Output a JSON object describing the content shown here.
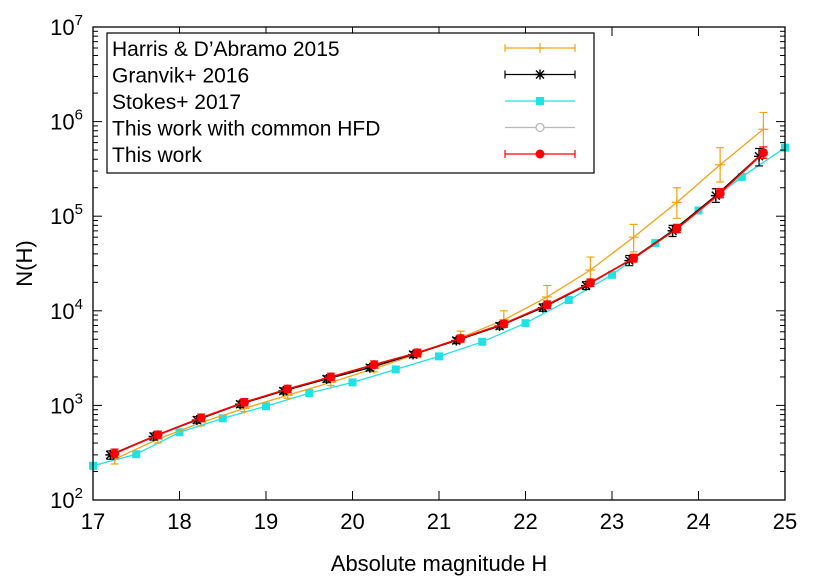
{
  "chart_data": {
    "type": "line",
    "xlabel": "Absolute magnitude H",
    "ylabel": "N(H)",
    "xlim": [
      17,
      25
    ],
    "ylim": [
      100,
      10000000
    ],
    "yscale": "log",
    "x_ticks": [
      17,
      18,
      19,
      20,
      21,
      22,
      23,
      24,
      25
    ],
    "y_ticks": [
      {
        "value": 100,
        "base": "10",
        "exp": "2"
      },
      {
        "value": 1000,
        "base": "10",
        "exp": "3"
      },
      {
        "value": 10000,
        "base": "10",
        "exp": "4"
      },
      {
        "value": 100000,
        "base": "10",
        "exp": "5"
      },
      {
        "value": 1000000,
        "base": "10",
        "exp": "6"
      },
      {
        "value": 10000000,
        "base": "10",
        "exp": "7"
      }
    ],
    "grid": false,
    "legend_position": "top-left",
    "series": [
      {
        "name": "Harris & D’Abramo 2015",
        "color": "#f4a316",
        "marker": "plus",
        "x": [
          17.25,
          17.75,
          18.25,
          18.75,
          19.25,
          19.75,
          20.25,
          20.75,
          21.25,
          21.75,
          22.25,
          22.75,
          23.25,
          23.75,
          24.25,
          24.75
        ],
        "y": [
          270,
          440,
          660,
          930,
          1280,
          1750,
          2450,
          3500,
          5200,
          8000,
          14000,
          27000,
          60000,
          140000,
          350000,
          830000
        ],
        "err": [
          [
            240,
            300
          ],
          [
            400,
            490
          ],
          [
            610,
            720
          ],
          [
            860,
            1010
          ],
          [
            1190,
            1390
          ],
          [
            1620,
            1900
          ],
          [
            2260,
            2660
          ],
          [
            3200,
            3850
          ],
          [
            4600,
            6100
          ],
          [
            6800,
            10000
          ],
          [
            11000,
            18500
          ],
          [
            20000,
            37000
          ],
          [
            42000,
            82000
          ],
          [
            95000,
            200000
          ],
          [
            230000,
            530000
          ],
          [
            540000,
            1250000
          ]
        ]
      },
      {
        "name": "Granvik+ 2016",
        "color": "#000000",
        "marker": "star",
        "x": [
          17.2,
          17.7,
          18.2,
          18.7,
          19.2,
          19.7,
          20.2,
          20.7,
          21.2,
          21.7,
          22.2,
          22.7,
          23.2,
          23.7,
          24.2,
          24.7
        ],
        "y": [
          300,
          470,
          700,
          1030,
          1420,
          1900,
          2500,
          3450,
          4850,
          6900,
          10800,
          18500,
          34000,
          70000,
          165000,
          430000
        ],
        "err": [
          [
            270,
            330
          ],
          [
            430,
            510
          ],
          [
            650,
            760
          ],
          [
            950,
            1110
          ],
          [
            1320,
            1530
          ],
          [
            1760,
            2050
          ],
          [
            2320,
            2700
          ],
          [
            3200,
            3720
          ],
          [
            4500,
            5200
          ],
          [
            6400,
            7450
          ],
          [
            9900,
            11800
          ],
          [
            16800,
            20300
          ],
          [
            30000,
            38500
          ],
          [
            61000,
            80000
          ],
          [
            140000,
            195000
          ],
          [
            340000,
            520000
          ]
        ]
      },
      {
        "name": "Stokes+ 2017",
        "color": "#1fe3e3",
        "marker": "square",
        "x": [
          17.0,
          17.5,
          18.0,
          18.5,
          19.0,
          19.5,
          20.0,
          20.5,
          21.0,
          21.5,
          22.0,
          22.5,
          23.0,
          23.5,
          24.0,
          24.5,
          25.0
        ],
        "y": [
          230,
          305,
          520,
          730,
          980,
          1350,
          1750,
          2400,
          3300,
          4700,
          7400,
          13000,
          24000,
          52000,
          115000,
          260000,
          530000
        ]
      },
      {
        "name": "This work with common HFD",
        "color": "#b8b8b8",
        "marker": "circle-open",
        "x": [
          17.25,
          17.75,
          18.25,
          18.75,
          19.25,
          19.75,
          20.25,
          20.75,
          21.25,
          21.75,
          22.25,
          22.75,
          23.25,
          23.75,
          24.25,
          24.75
        ],
        "y": [
          310,
          480,
          730,
          1060,
          1470,
          1980,
          2650,
          3550,
          5000,
          7200,
          11400,
          19500,
          35500,
          73000,
          170000,
          460000
        ]
      },
      {
        "name": "This work",
        "color": "#ff0000",
        "marker": "circle-filled",
        "x": [
          17.25,
          17.75,
          18.25,
          18.75,
          19.25,
          19.75,
          20.25,
          20.75,
          21.25,
          21.75,
          22.25,
          22.75,
          23.25,
          23.75,
          24.25,
          24.75
        ],
        "y": [
          310,
          490,
          740,
          1080,
          1490,
          2000,
          2700,
          3600,
          5100,
          7300,
          11600,
          19800,
          36000,
          74000,
          175000,
          470000
        ],
        "err": [
          [
            280,
            345
          ],
          [
            450,
            535
          ],
          [
            680,
            810
          ],
          [
            990,
            1180
          ],
          [
            1370,
            1630
          ],
          [
            1840,
            2190
          ],
          [
            2480,
            2950
          ],
          [
            3300,
            3930
          ],
          [
            4680,
            5560
          ],
          [
            6700,
            7960
          ],
          [
            10600,
            12700
          ],
          [
            18100,
            21700
          ],
          [
            32800,
            39500
          ],
          [
            67000,
            82000
          ],
          [
            157000,
            195000
          ],
          [
            410000,
            540000
          ]
        ]
      }
    ]
  }
}
